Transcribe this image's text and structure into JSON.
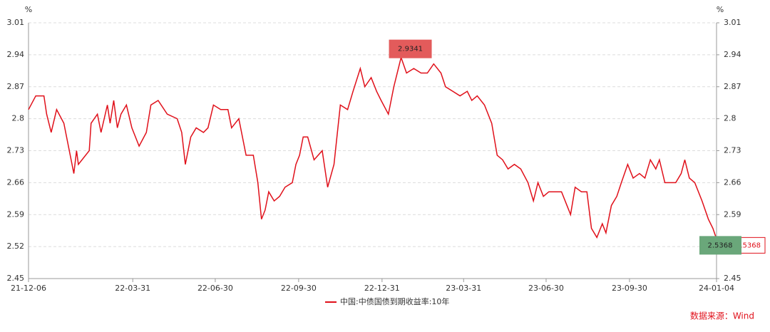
{
  "chart_data": {
    "type": "line",
    "y_unit": "%",
    "y2_unit": "%",
    "ylim": [
      2.45,
      3.01
    ],
    "yticks": [
      2.45,
      2.52,
      2.59,
      2.66,
      2.73,
      2.8,
      2.87,
      2.94,
      3.01
    ],
    "y2lim": [
      2.45,
      3.01
    ],
    "y2ticks": [
      2.45,
      2.52,
      2.59,
      2.66,
      2.73,
      2.8,
      2.87,
      2.94,
      3.01
    ],
    "xlim": [
      "21-12-06",
      "24-01-04"
    ],
    "xticks": [
      "21-12-06",
      "22-03-31",
      "22-06-30",
      "22-09-30",
      "22-12-31",
      "23-03-31",
      "23-06-30",
      "23-09-30",
      "24-01-04"
    ],
    "grid": true,
    "x": [
      "21-12-06",
      "21-12-14",
      "21-12-23",
      "21-12-26",
      "21-12-31",
      "22-01-06",
      "22-01-14",
      "22-01-21",
      "22-01-25",
      "22-01-28",
      "22-01-30",
      "22-02-11",
      "22-02-13",
      "22-02-20",
      "22-02-24",
      "22-03-03",
      "22-03-06",
      "22-03-10",
      "22-03-14",
      "22-03-18",
      "22-03-24",
      "22-03-30",
      "22-04-07",
      "22-04-15",
      "22-04-20",
      "22-04-28",
      "22-05-08",
      "22-05-19",
      "22-05-24",
      "22-05-28",
      "22-06-03",
      "22-06-09",
      "22-06-17",
      "22-06-22",
      "22-06-28",
      "22-07-06",
      "22-07-14",
      "22-07-18",
      "22-07-26",
      "22-08-03",
      "22-08-11",
      "22-08-16",
      "22-08-20",
      "22-08-24",
      "22-08-28",
      "22-09-03",
      "22-09-09",
      "22-09-15",
      "22-09-23",
      "22-09-27",
      "22-10-01",
      "22-10-05",
      "22-10-10",
      "22-10-17",
      "22-10-26",
      "22-11-01",
      "22-11-08",
      "22-11-15",
      "22-11-23",
      "22-11-29",
      "22-12-07",
      "22-12-12",
      "22-12-19",
      "22-12-25",
      "22-12-30",
      "23-01-07",
      "23-01-13",
      "23-01-21",
      "23-01-27",
      "23-02-04",
      "23-02-12",
      "23-02-19",
      "23-02-26",
      "23-03-06",
      "23-03-11",
      "23-03-19",
      "23-03-27",
      "23-04-04",
      "23-04-09",
      "23-04-15",
      "23-04-23",
      "23-05-01",
      "23-05-07",
      "23-05-13",
      "23-05-19",
      "23-05-26",
      "23-06-02",
      "23-06-10",
      "23-06-16",
      "23-06-21",
      "23-06-27",
      "23-07-03",
      "23-07-11",
      "23-07-17",
      "23-07-23",
      "23-07-27",
      "23-08-01",
      "23-08-08",
      "23-08-14",
      "23-08-19",
      "23-08-25",
      "23-08-31",
      "23-09-04",
      "23-09-10",
      "23-09-16",
      "23-09-21",
      "23-09-28",
      "23-10-04",
      "23-10-11",
      "23-10-17",
      "23-10-23",
      "23-10-29",
      "23-11-02",
      "23-11-08",
      "23-11-14",
      "23-11-20",
      "23-11-26",
      "23-11-30",
      "23-12-05",
      "23-12-11",
      "23-12-19",
      "23-12-26",
      "23-12-31",
      "24-01-04"
    ],
    "series": [
      {
        "name": "中国:中债国债到期收益率:10年",
        "color": "#e0101a",
        "values": [
          2.82,
          2.85,
          2.85,
          2.81,
          2.77,
          2.82,
          2.79,
          2.72,
          2.68,
          2.73,
          2.7,
          2.73,
          2.79,
          2.81,
          2.77,
          2.83,
          2.79,
          2.84,
          2.78,
          2.81,
          2.83,
          2.78,
          2.74,
          2.77,
          2.83,
          2.84,
          2.81,
          2.8,
          2.77,
          2.7,
          2.76,
          2.78,
          2.77,
          2.78,
          2.83,
          2.82,
          2.82,
          2.78,
          2.8,
          2.72,
          2.72,
          2.66,
          2.58,
          2.6,
          2.64,
          2.62,
          2.63,
          2.65,
          2.66,
          2.7,
          2.72,
          2.76,
          2.76,
          2.71,
          2.73,
          2.65,
          2.7,
          2.83,
          2.82,
          2.86,
          2.91,
          2.87,
          2.89,
          2.86,
          2.84,
          2.81,
          2.87,
          2.9341,
          2.9,
          2.91,
          2.9,
          2.9,
          2.92,
          2.9,
          2.87,
          2.86,
          2.85,
          2.86,
          2.84,
          2.85,
          2.83,
          2.79,
          2.72,
          2.71,
          2.69,
          2.7,
          2.69,
          2.66,
          2.62,
          2.66,
          2.63,
          2.64,
          2.64,
          2.64,
          2.61,
          2.59,
          2.65,
          2.64,
          2.64,
          2.56,
          2.54,
          2.57,
          2.55,
          2.61,
          2.63,
          2.66,
          2.7,
          2.67,
          2.68,
          2.67,
          2.71,
          2.69,
          2.71,
          2.66,
          2.66,
          2.66,
          2.68,
          2.71,
          2.67,
          2.66,
          2.62,
          2.58,
          2.56,
          2.5368
        ]
      }
    ],
    "source": "数据来源：Wind"
  }
}
